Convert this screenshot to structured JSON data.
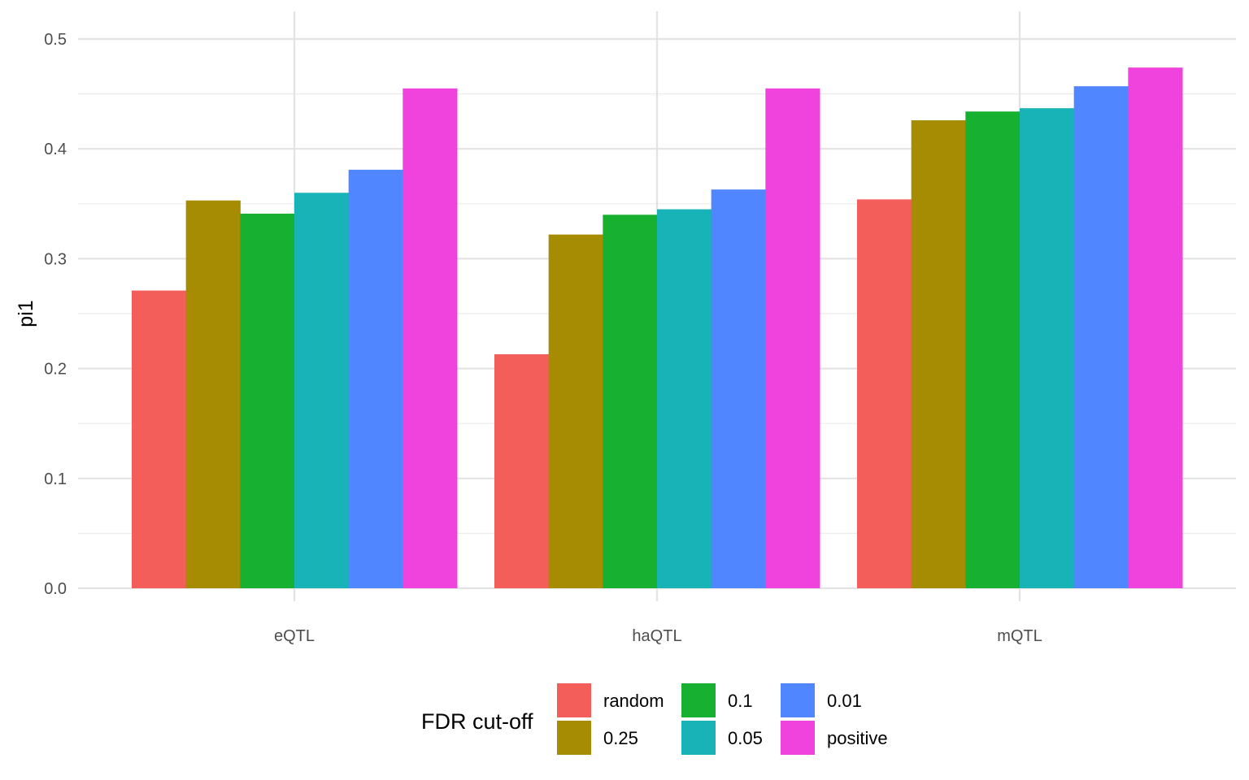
{
  "chart_data": {
    "type": "bar",
    "title": "",
    "xlabel": "",
    "ylabel": "pi1",
    "ylim": [
      0,
      0.52
    ],
    "yticks": [
      "0.0",
      "0.1",
      "0.2",
      "0.3",
      "0.4",
      "0.5"
    ],
    "grid": true,
    "categories": [
      "eQTL",
      "haQTL",
      "mQTL"
    ],
    "legend": {
      "title": "FDR cut-off",
      "placement": "bottom"
    },
    "series": [
      {
        "name": "random",
        "color": "#F35E5A",
        "values": [
          0.271,
          0.213,
          0.354
        ]
      },
      {
        "name": "0.25",
        "color": "#A58C03",
        "values": [
          0.353,
          0.322,
          0.426
        ]
      },
      {
        "name": "0.1",
        "color": "#18B031",
        "values": [
          0.341,
          0.34,
          0.434
        ]
      },
      {
        "name": "0.05",
        "color": "#17B3B7",
        "values": [
          0.36,
          0.345,
          0.437
        ]
      },
      {
        "name": "0.01",
        "color": "#5086FF",
        "values": [
          0.381,
          0.363,
          0.457
        ]
      },
      {
        "name": "positive",
        "color": "#F042DC",
        "values": [
          0.455,
          0.455,
          0.474
        ]
      }
    ]
  }
}
